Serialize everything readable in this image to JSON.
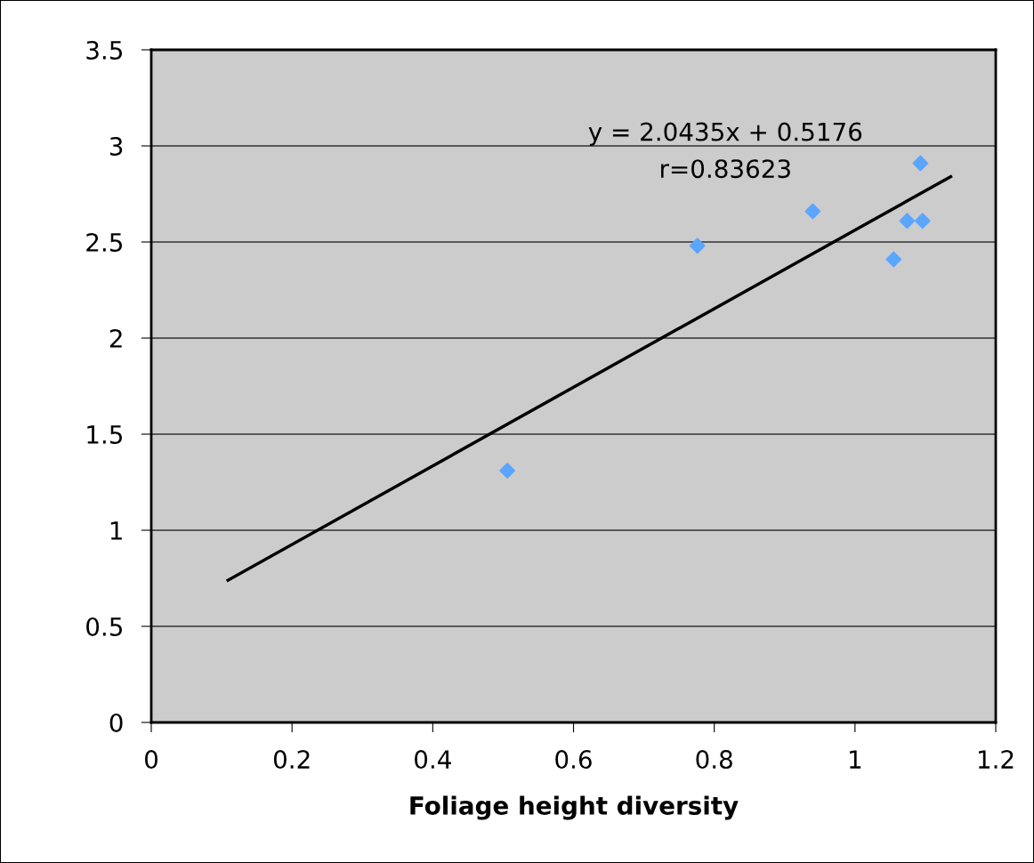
{
  "chart_data": {
    "type": "scatter",
    "xlabel": "Foliage height diversity",
    "series": [
      {
        "color": "#5aa5ff",
        "marker": "diamond",
        "x": [
          0.506,
          0.776,
          0.94,
          1.055,
          1.074,
          1.093,
          1.096
        ],
        "values": [
          1.31,
          2.48,
          2.66,
          2.41,
          2.61,
          2.91,
          2.61
        ]
      },
      {
        "type": "line",
        "color": "#000000",
        "marker": "none",
        "line_style": "solid",
        "x": [
          0.109,
          1.136
        ],
        "values": [
          0.74,
          2.84
        ]
      }
    ],
    "annotations": [
      "y = 2.0435x + 0.5176",
      "r=0.83623"
    ],
    "xlim": [
      0,
      1.2
    ],
    "xticks": [
      0,
      0.2,
      0.4,
      0.6,
      0.8,
      1,
      1.2
    ],
    "ylim": [
      0,
      3.5
    ],
    "yticks": [
      0,
      0.5,
      1,
      1.5,
      2,
      2.5,
      3,
      3.5
    ],
    "grid": "y",
    "legend": false
  }
}
